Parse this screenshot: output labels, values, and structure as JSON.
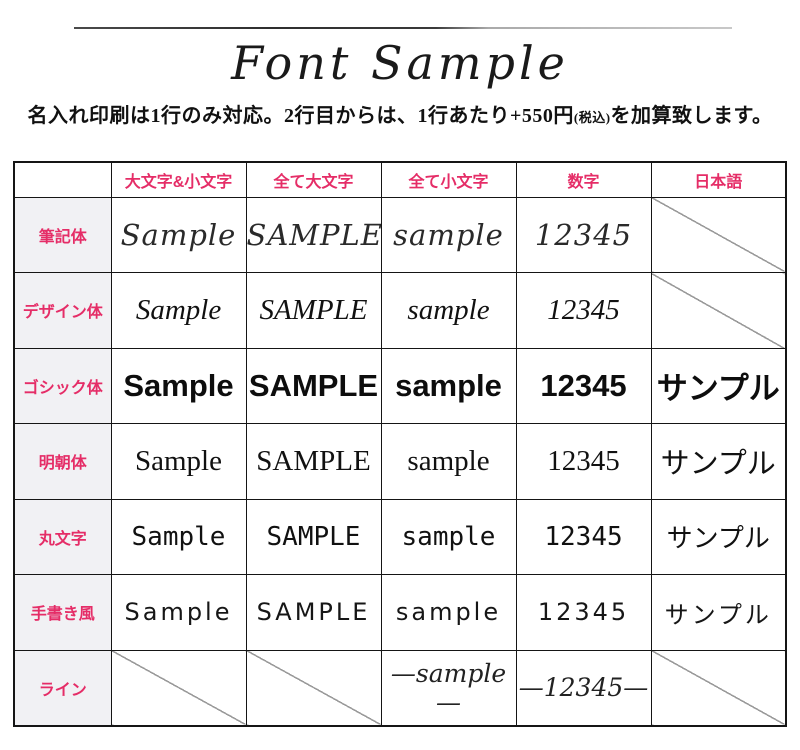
{
  "colors": {
    "accent_pink": "#e52d67",
    "label_bg": "#f1f1f4",
    "border": "#151515",
    "diagonal_gray": "#9a9a9a"
  },
  "header": {
    "title": "Font Sample",
    "subtitle_main": "名入れ印刷は1行のみ対応。2行目からは、1行あたり+550円",
    "subtitle_small": "(税込)",
    "subtitle_tail": "を加算致します。"
  },
  "table": {
    "columns": [
      "大文字&小文字",
      "全て大文字",
      "全て小文字",
      "数字",
      "日本語"
    ],
    "rows": [
      {
        "label": "筆記体",
        "cells": [
          "Sample",
          "SAMPLE",
          "sample",
          "12345",
          null
        ]
      },
      {
        "label": "デザイン体",
        "cells": [
          "Sample",
          "SAMPLE",
          "sample",
          "12345",
          null
        ]
      },
      {
        "label": "ゴシック体",
        "cells": [
          "Sample",
          "SAMPLE",
          "sample",
          "12345",
          "サンプル"
        ]
      },
      {
        "label": "明朝体",
        "cells": [
          "Sample",
          "SAMPLE",
          "sample",
          "12345",
          "サンプル"
        ]
      },
      {
        "label": "丸文字",
        "cells": [
          "Sample",
          "SAMPLE",
          "sample",
          "12345",
          "サンプル"
        ]
      },
      {
        "label": "手書き風",
        "cells": [
          "Sample",
          "SAMPLE",
          "sample",
          "12345",
          "サンプル"
        ]
      },
      {
        "label": "ライン",
        "cells": [
          null,
          null,
          "—sample—",
          "—12345—",
          null
        ]
      }
    ]
  }
}
